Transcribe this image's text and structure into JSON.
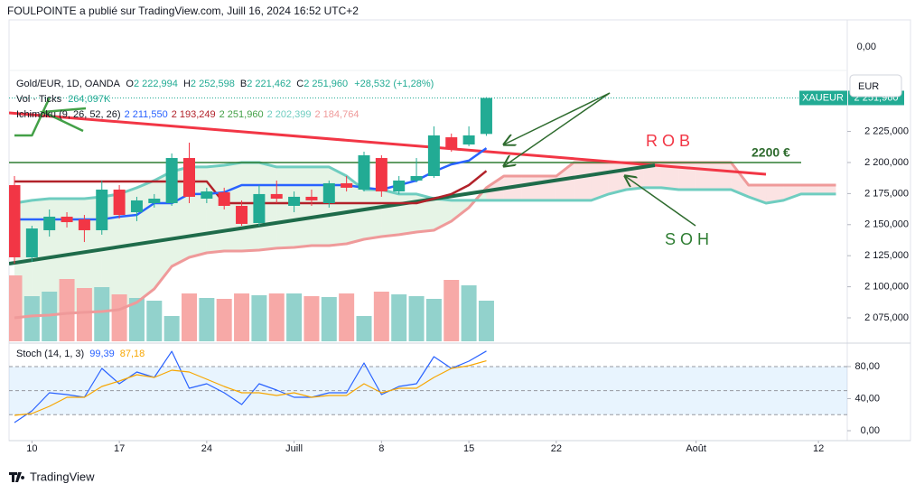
{
  "header": "FOULPOINTE a publié sur TradingView.com, Juill 16, 2024 16:52 UTC+2",
  "footer": "TradingView",
  "currency_button": "EUR",
  "symbol_tag": "XAUEUR",
  "last_price_label": "2 251,960",
  "annotations": [
    "R O B",
    "S O H",
    "2200 €"
  ],
  "chart_data": {
    "type": "candlestick",
    "symbol": "Gold/EUR, 1D, OANDA",
    "ohlc_legend": [
      {
        "key": "O",
        "value": "2 222,994"
      },
      {
        "key": "H",
        "value": "2 252,598"
      },
      {
        "key": "B",
        "value": "2 221,462"
      },
      {
        "key": "C",
        "value": "2 251,960"
      }
    ],
    "change": "+28,532 (+1,28%)",
    "x": [
      "2024-06-07",
      "2024-06-10",
      "2024-06-11",
      "2024-06-12",
      "2024-06-13",
      "2024-06-14",
      "2024-06-17",
      "2024-06-18",
      "2024-06-19",
      "2024-06-20",
      "2024-06-21",
      "2024-06-24",
      "2024-06-25",
      "2024-06-26",
      "2024-06-27",
      "2024-06-28",
      "2024-07-01",
      "2024-07-02",
      "2024-07-03",
      "2024-07-04",
      "2024-07-05",
      "2024-07-08",
      "2024-07-09",
      "2024-07-10",
      "2024-07-11",
      "2024-07-12",
      "2024-07-15",
      "2024-07-16",
      "2024-07-17",
      "2024-07-18",
      "2024-07-19",
      "2024-07-22",
      "2024-07-23",
      "2024-07-24",
      "2024-07-25",
      "2024-07-26",
      "2024-07-29",
      "2024-07-30",
      "2024-07-31",
      "2024-08-01",
      "2024-08-02",
      "2024-08-05",
      "2024-08-06",
      "2024-08-07",
      "2024-08-08",
      "2024-08-09",
      "2024-08-12",
      "2024-08-13"
    ],
    "open": [
      2181.8,
      2123.7,
      2145.5,
      2156.4,
      2154.2,
      2145.5,
      2178.2,
      2160.0,
      2167.3,
      2167.3,
      2203.6,
      2170.9,
      2176.0,
      2165.1,
      2151.3,
      2174.6,
      2165.1,
      2172.4,
      2167.3,
      2183.3,
      2178.2,
      2203.6,
      2176.7,
      2185.5,
      2189.1,
      2220.3,
      2214.5,
      2222.994,
      null,
      null,
      null,
      null,
      null,
      null,
      null,
      null,
      null,
      null,
      null,
      null,
      null,
      null,
      null,
      null,
      null,
      null,
      null,
      null
    ],
    "high": [
      2189.1,
      2149.1,
      2162.2,
      2160.0,
      2157.8,
      2185.5,
      2181.8,
      2172.4,
      2174.6,
      2207.3,
      2216.0,
      2179.7,
      2179.7,
      2169.5,
      2181.8,
      2185.5,
      2176.7,
      2178.2,
      2185.5,
      2189.1,
      2208.7,
      2205.8,
      2189.1,
      2203.6,
      2229.1,
      2223.3,
      2229.1,
      2252.598,
      null,
      null,
      null,
      null,
      null,
      null,
      null,
      null,
      null,
      null,
      null,
      null,
      null,
      null,
      null,
      null,
      null,
      null,
      null,
      null
    ],
    "low": [
      2118.6,
      2120.1,
      2140.4,
      2147.7,
      2136.0,
      2141.9,
      2154.9,
      2152.8,
      2163.7,
      2165.1,
      2167.3,
      2167.3,
      2162.2,
      2149.1,
      2149.1,
      2167.3,
      2160.0,
      2165.1,
      2163.7,
      2176.7,
      2176.7,
      2172.4,
      2174.6,
      2184.0,
      2187.6,
      2208.7,
      2213.1,
      2221.462,
      null,
      null,
      null,
      null,
      null,
      null,
      null,
      null,
      null,
      null,
      null,
      null,
      null,
      null,
      null,
      null,
      null,
      null,
      null,
      null
    ],
    "close": [
      2123.7,
      2146.9,
      2156.4,
      2152.0,
      2145.5,
      2178.2,
      2157.8,
      2169.5,
      2170.9,
      2203.6,
      2172.4,
      2176.7,
      2165.1,
      2150.6,
      2174.6,
      2170.9,
      2172.4,
      2169.5,
      2183.3,
      2179.7,
      2205.8,
      2176.7,
      2185.5,
      2189.1,
      2221.8,
      2210.9,
      2221.8,
      2251.96,
      null,
      null,
      null,
      null,
      null,
      null,
      null,
      null,
      null,
      null,
      null,
      null,
      null,
      null,
      null,
      null,
      null,
      null,
      null,
      null
    ],
    "colors": {
      "up": "#22ab94",
      "down": "#f23645"
    },
    "ylim": [
      2056.1,
      2314.8
    ],
    "yticks": [
      {
        "value": 2225,
        "label": "2 225,000"
      },
      {
        "value": 2200,
        "label": "2 200,000"
      },
      {
        "value": 2175,
        "label": "2 175,000"
      },
      {
        "value": 2150,
        "label": "2 150,000"
      },
      {
        "value": 2125,
        "label": "2 125,000"
      },
      {
        "value": 2100,
        "label": "2 100,000"
      },
      {
        "value": 2075,
        "label": "2 075,000"
      }
    ],
    "xticks": [
      {
        "value": "2024-06-10",
        "label": "10"
      },
      {
        "value": "2024-06-17",
        "label": "17"
      },
      {
        "value": "2024-06-24",
        "label": "24"
      },
      {
        "value": "2024-07-01",
        "label": "Juill"
      },
      {
        "value": "2024-07-08",
        "label": "8"
      },
      {
        "value": "2024-07-15",
        "label": "15"
      },
      {
        "value": "2024-07-22",
        "label": "22"
      },
      {
        "value": "2024-08-01",
        "label": "Août"
      },
      {
        "value": "2024-08-12",
        "label": "12"
      }
    ],
    "hline": 2200,
    "volume": {
      "name": "Vol · Ticks",
      "axis_label": "0,00",
      "value_label": "264,097K",
      "ylim": [
        0,
        2089400
      ],
      "colors": {
        "up": "#92d2cc",
        "down": "#f7a9a7"
      },
      "values": [
        428400,
        293400,
        322800,
        405000,
        346300,
        352100,
        305200,
        281700,
        264100,
        164300,
        311100,
        281700,
        275800,
        311100,
        299300,
        311100,
        311100,
        293400,
        287600,
        311100,
        164300,
        322800,
        305200,
        293400,
        275800,
        399100,
        363900,
        264097,
        null,
        null,
        null,
        null,
        null,
        null,
        null,
        null,
        null,
        null,
        null,
        null,
        null,
        null,
        null,
        null,
        null,
        null,
        null,
        null
      ]
    },
    "ichimoku": {
      "name": "Ichimoku (9, 26, 52, 26)",
      "lines": [
        {
          "color": "#2962ff",
          "value_label": "2 211,550",
          "values": [
            2154.2,
            2154.2,
            2154.2,
            2154.2,
            2154.2,
            2154.2,
            2156.4,
            2157.8,
            2167.3,
            2167.3,
            2174.6,
            2174.6,
            2176.0,
            2181.8,
            2181.8,
            2181.8,
            2181.8,
            2181.8,
            2181.8,
            2181.8,
            2179.7,
            2178.2,
            2181.8,
            2185.5,
            2192.7,
            2198.5,
            2201.5,
            2211.55,
            null,
            null,
            null,
            null,
            null,
            null,
            null,
            null,
            null,
            null,
            null,
            null,
            null,
            null,
            null,
            null,
            null,
            null,
            null,
            null
          ]
        },
        {
          "color": "#b2222a",
          "value_label": "2 193,249",
          "values": [
            2184.7,
            2184.7,
            2184.7,
            2184.7,
            2184.7,
            2184.7,
            2184.7,
            2184.7,
            2184.7,
            2184.7,
            2184.7,
            2184.7,
            2167.3,
            2167.3,
            2167.3,
            2167.3,
            2167.3,
            2167.3,
            2167.3,
            2167.3,
            2167.3,
            2167.3,
            2167.3,
            2167.3,
            2170.9,
            2174.6,
            2181.8,
            2193.249,
            null,
            null,
            null,
            null,
            null,
            null,
            null,
            null,
            null,
            null,
            null,
            null,
            null,
            null,
            null,
            null,
            null,
            null,
            null,
            null
          ]
        },
        {
          "color": "#43a047",
          "value_label": "2 251,960",
          "values": [
            2221.8,
            2221.8,
            2251.96,
            null,
            null,
            null,
            null,
            null,
            null,
            null,
            null,
            null,
            null,
            null,
            null,
            null,
            null,
            null,
            null,
            null,
            null,
            null,
            null,
            null,
            null,
            null,
            null,
            null,
            null,
            null,
            null,
            null,
            null,
            null,
            null,
            null,
            null,
            null,
            null,
            null,
            null,
            null,
            null,
            null,
            null,
            null,
            null,
            null
          ]
        },
        {
          "color": "#6fcdc0",
          "value_label": "2 202,399",
          "values": [
            2167.3,
            2169.5,
            2170.9,
            2170.9,
            2170.9,
            2172.4,
            2174.6,
            2179.7,
            2185.5,
            2192.7,
            2196.4,
            2196.4,
            2197.8,
            2200,
            2200,
            2196.4,
            2196.4,
            2196.4,
            2196.4,
            2189.1,
            2178.2,
            2178.2,
            2174.6,
            2174.6,
            2170.9,
            2169.5,
            2169.5,
            2169.5,
            2169.5,
            2169.5,
            2169.5,
            2169.5,
            2169.5,
            2169.5,
            2174.6,
            2178.2,
            2179.7,
            2179.7,
            2178.2,
            2178.2,
            2178.2,
            2178.2,
            2172.4,
            2167.3,
            2169.5,
            2174.6,
            2174.6,
            2174.6
          ]
        },
        {
          "color": "#ef9a9a",
          "value_label": "2 184,764",
          "values": [
            2075.0,
            2076.5,
            2077.2,
            2078.6,
            2079.4,
            2080.1,
            2081.6,
            2087.4,
            2098.3,
            2116.4,
            2123.7,
            2127.3,
            2128.8,
            2128.8,
            2129.5,
            2131.0,
            2131.7,
            2133.1,
            2133.1,
            2134.6,
            2138.2,
            2140.4,
            2141.9,
            2144.0,
            2145.5,
            2152.8,
            2163.7,
            2179.7,
            2189.1,
            2189.1,
            2189.1,
            2189.1,
            2200,
            2200,
            2200,
            2200,
            2200,
            2200,
            2200,
            2200,
            2200,
            2200,
            2181.8,
            2181.8,
            2181.8,
            2181.8,
            2181.8,
            2181.8
          ]
        }
      ]
    },
    "stoch": {
      "name": "Stoch (14, 1, 3)",
      "ylim": [
        -12.4,
        109.3
      ],
      "yticks": [
        {
          "value": 80,
          "label": "80,00"
        },
        {
          "value": 40,
          "label": "40,00"
        },
        {
          "value": 0,
          "label": "0,00"
        }
      ],
      "band": [
        20,
        80
      ],
      "levels": [
        20,
        50,
        80
      ],
      "lines": [
        {
          "color": "#2962ff",
          "value_label": "99,39",
          "values": [
            10.1,
            24.8,
            47.3,
            45.1,
            41.7,
            77.7,
            58.6,
            73.2,
            66.5,
            99.0,
            53.0,
            58.6,
            47.3,
            32.7,
            58.6,
            50.7,
            41.7,
            41.7,
            47.3,
            47.3,
            84.5,
            45.1,
            55.2,
            58.6,
            92.4,
            77.7,
            86.8,
            99.39,
            null,
            null,
            null,
            null,
            null,
            null,
            null,
            null,
            null,
            null,
            null,
            null,
            null,
            null,
            null,
            null,
            null,
            null,
            null,
            null
          ]
        },
        {
          "color": "#f7a600",
          "value_label": "87,18",
          "values": [
            19.2,
            21.4,
            30.4,
            41.7,
            41.7,
            55.2,
            62.0,
            69.9,
            66.5,
            75.5,
            73.2,
            64.2,
            55.2,
            47.3,
            47.3,
            43.9,
            47.3,
            41.7,
            43.9,
            43.9,
            58.6,
            47.3,
            53.0,
            53.0,
            66.5,
            77.7,
            81.1,
            87.18,
            null,
            null,
            null,
            null,
            null,
            null,
            null,
            null,
            null,
            null,
            null,
            null,
            null,
            null,
            null,
            null,
            null,
            null,
            null,
            null
          ]
        }
      ]
    }
  }
}
